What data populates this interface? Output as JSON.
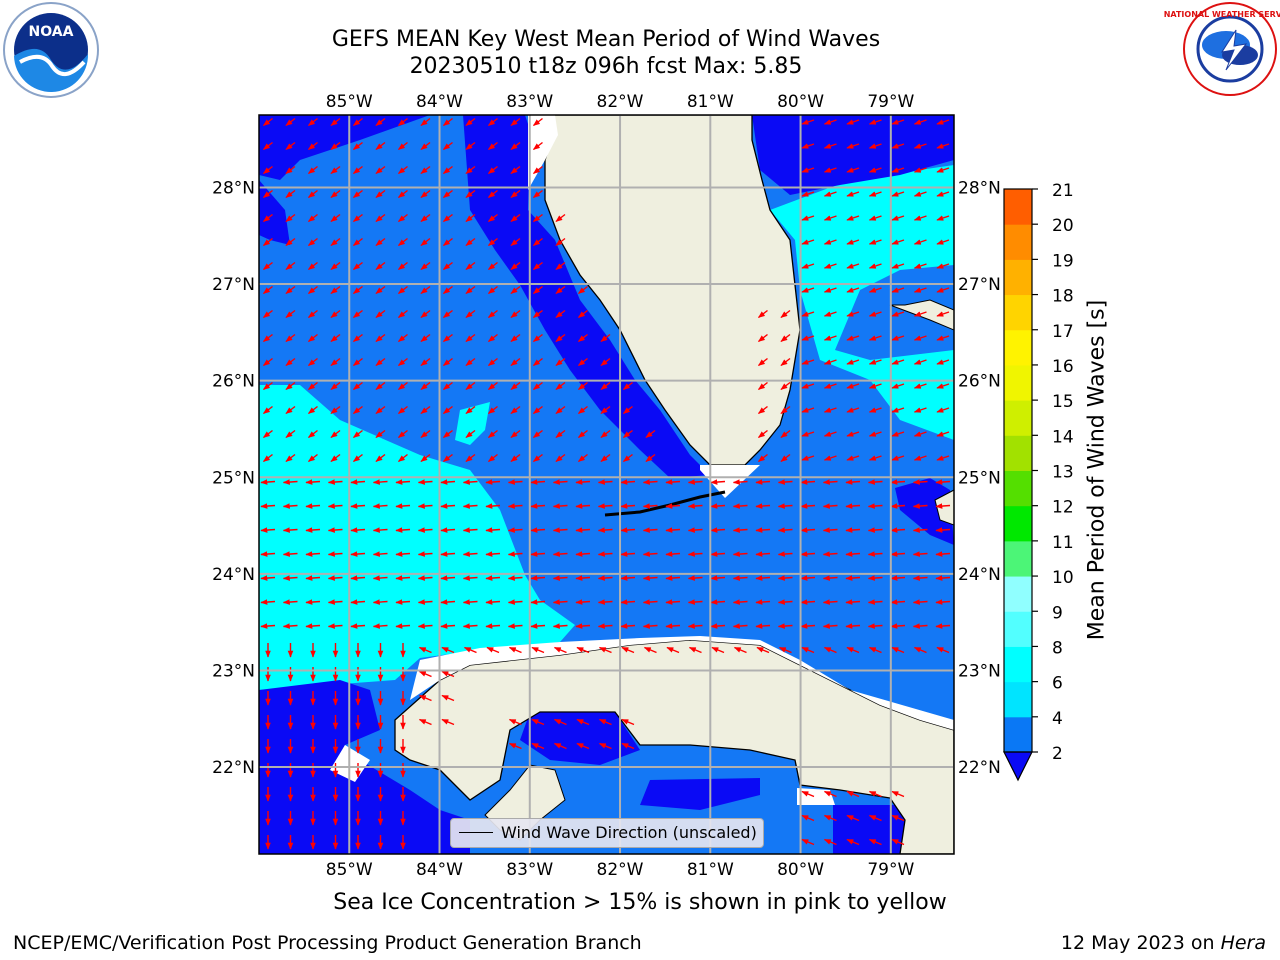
{
  "header": {
    "title_line1": "GEFS MEAN Key West Mean Period of Wind Waves",
    "title_line2": "20230510 t18z 096h fcst   Max: 5.85"
  },
  "logos": {
    "left": "noaa-logo",
    "left_text": "NOAA",
    "right": "nws-logo",
    "right_text": "NATIONAL WEATHER SERVICE"
  },
  "map": {
    "lon_labels": [
      "85°W",
      "84°W",
      "83°W",
      "82°W",
      "81°W",
      "80°W",
      "79°W"
    ],
    "lat_labels": [
      "28°N",
      "27°N",
      "26°N",
      "25°N",
      "24°N",
      "23°N",
      "22°N"
    ],
    "lon_range": [
      -86.0,
      -78.3
    ],
    "lat_range": [
      21.1,
      28.75
    ],
    "colors": {
      "land": "#efefdf",
      "period_2_4": "#1478f5",
      "period_lt_2": "#0a0af5",
      "period_4_6": "#00ffff",
      "arrow": "#ff0000",
      "grid": "#b0b0b0"
    }
  },
  "legend": {
    "label": "Wind Wave Direction (unscaled)",
    "icon": "black-line"
  },
  "colorbar": {
    "label": "Mean Period of Wind Waves [s]",
    "ticks": [
      "2",
      "4",
      "6",
      "8",
      "9",
      "10",
      "11",
      "12",
      "13",
      "14",
      "15",
      "16",
      "17",
      "18",
      "19",
      "20",
      "21"
    ],
    "colors": [
      "#0a78f5",
      "#00e4ff",
      "#00ffff",
      "#52ffff",
      "#90ffff",
      "#4cf577",
      "#00e800",
      "#54df00",
      "#a2e100",
      "#cfef00",
      "#f0f500",
      "#fff300",
      "#ffd400",
      "#ffb100",
      "#ff8c00",
      "#ff5e00",
      "#ff3000",
      "#ff0000"
    ],
    "under_color": "#0a0af5"
  },
  "notes": {
    "ice": "Sea Ice Concentration > 15% is shown in pink to yellow"
  },
  "footer": {
    "left": "NCEP/EMC/Verification Post Processing Product Generation Branch",
    "right_prefix": "12 May 2023 on ",
    "right_italic": "Hera"
  }
}
